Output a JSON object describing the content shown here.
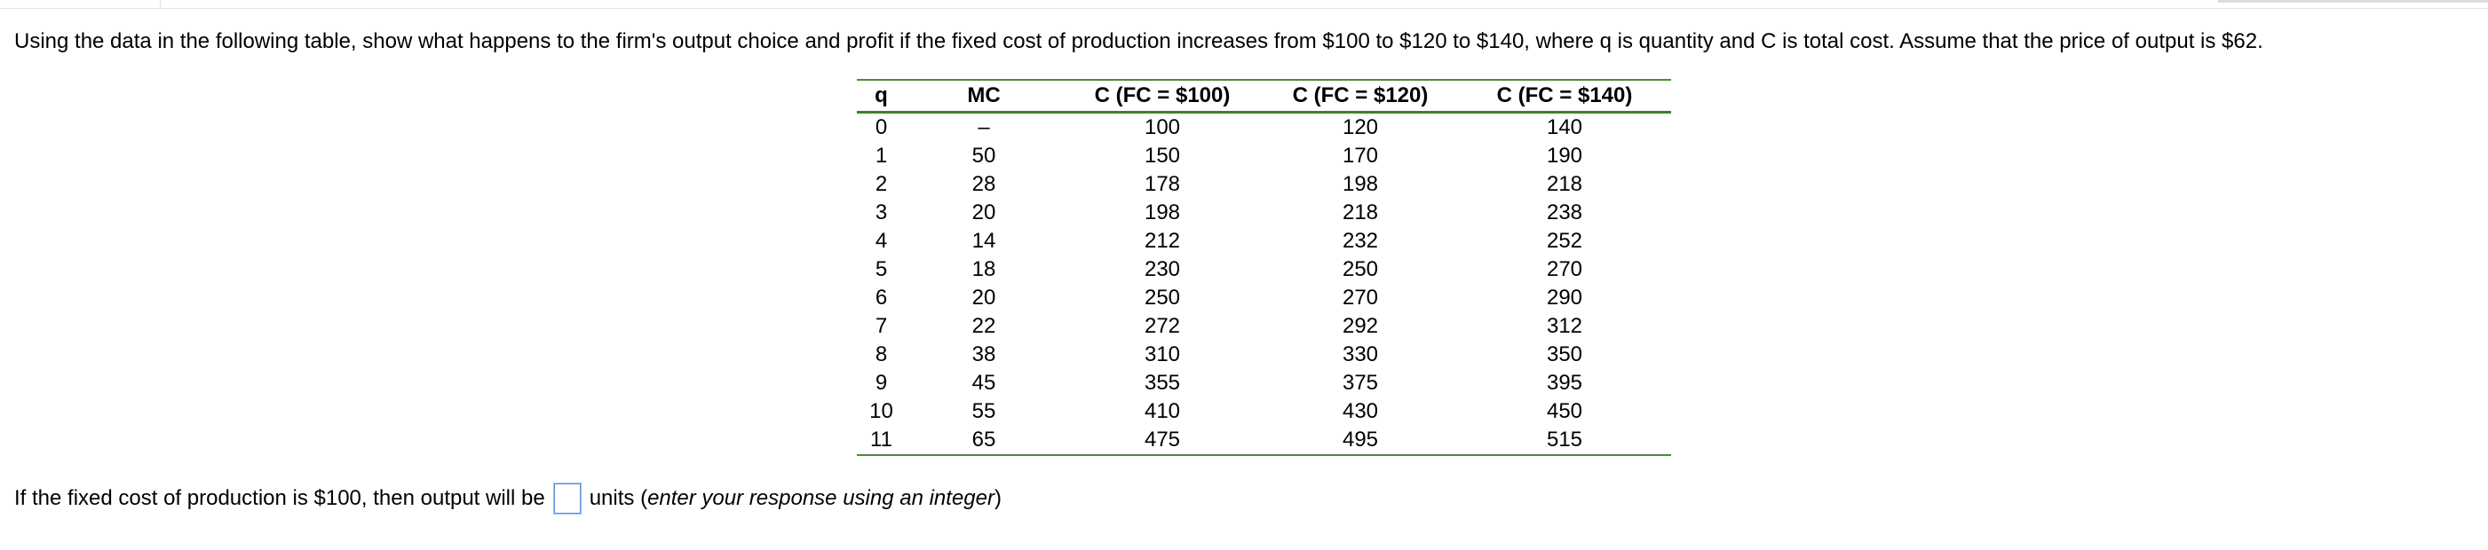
{
  "question": "Using the data in the following table, show what happens to the firm's output choice and profit if the fixed cost of production increases from $100 to $120 to $140, where q is quantity and C is total cost. Assume that the price of output is $62.",
  "table": {
    "headers": [
      "q",
      "MC",
      "C (FC = $100)",
      "C (FC = $120)",
      "C (FC = $140)"
    ],
    "rows": [
      [
        "0",
        "–",
        "100",
        "120",
        "140"
      ],
      [
        "1",
        "50",
        "150",
        "170",
        "190"
      ],
      [
        "2",
        "28",
        "178",
        "198",
        "218"
      ],
      [
        "3",
        "20",
        "198",
        "218",
        "238"
      ],
      [
        "4",
        "14",
        "212",
        "232",
        "252"
      ],
      [
        "5",
        "18",
        "230",
        "250",
        "270"
      ],
      [
        "6",
        "20",
        "250",
        "270",
        "290"
      ],
      [
        "7",
        "22",
        "272",
        "292",
        "312"
      ],
      [
        "8",
        "38",
        "310",
        "330",
        "350"
      ],
      [
        "9",
        "45",
        "355",
        "375",
        "395"
      ],
      [
        "10",
        "55",
        "410",
        "430",
        "450"
      ],
      [
        "11",
        "65",
        "475",
        "495",
        "515"
      ]
    ]
  },
  "answer": {
    "prefix": "If the fixed cost of production is $100, then output will be",
    "value": "",
    "suffix_units": "units (",
    "suffix_hint": "enter your response using an integer",
    "suffix_close": ")"
  },
  "colors": {
    "table_rule": "#3f7f2c",
    "input_border": "#5a8fd6"
  }
}
